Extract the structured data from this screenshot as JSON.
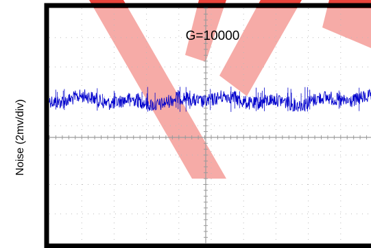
{
  "chart_data": {
    "type": "line",
    "title": "",
    "annotation": "G=10000",
    "ylabel": "Noise (2mv/div)",
    "xlabel": "",
    "grid": true,
    "y_per_div_mV": 2,
    "divisions": {
      "x": 10,
      "y": 8
    },
    "series": [
      {
        "color": "#0000cc",
        "baseline_div": 1.25,
        "noise_pp_div": 0.55
      }
    ],
    "background_mark_color": "#e8241a"
  }
}
